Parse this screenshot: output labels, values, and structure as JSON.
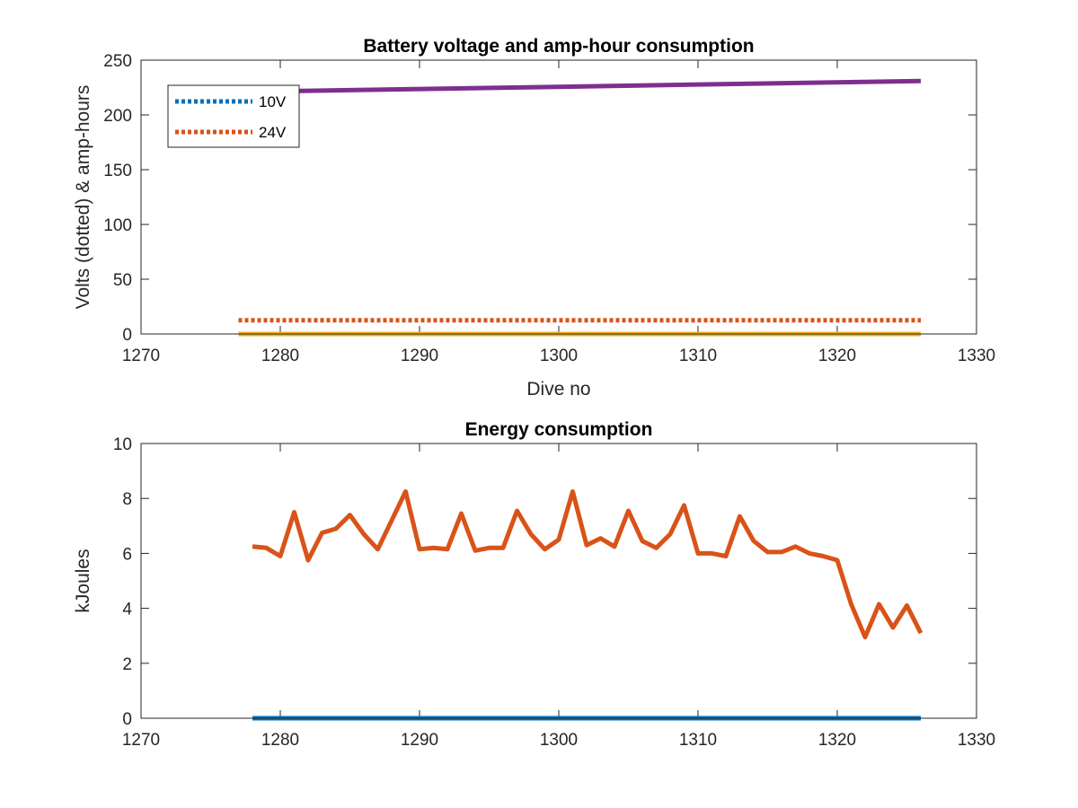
{
  "colors": {
    "blue": "#0072BD",
    "orange": "#D95319",
    "yellow": "#EDB120",
    "purple": "#7E2F8E",
    "axis": "#262626"
  },
  "chart_data": [
    {
      "type": "line",
      "title": "Battery voltage and amp-hour consumption",
      "xlabel": "Dive no",
      "ylabel": "Volts (dotted) & amp-hours",
      "xlim": [
        1270,
        1330
      ],
      "ylim": [
        0,
        250
      ],
      "xticks": [
        1270,
        1280,
        1290,
        1300,
        1310,
        1320,
        1330
      ],
      "yticks": [
        0,
        50,
        100,
        150,
        200,
        250
      ],
      "legend": {
        "placement": "top-left",
        "entries": [
          "10V",
          "24V"
        ]
      },
      "series": [
        {
          "name": "10V",
          "color": "blue",
          "style": "dotted",
          "x": [
            1277,
            1326
          ],
          "values": [
            0,
            0
          ]
        },
        {
          "name": "24V",
          "color": "orange",
          "style": "dotted",
          "x": [
            1277,
            1326
          ],
          "values": [
            12.5,
            12.5
          ]
        },
        {
          "color": "yellow",
          "style": "solid",
          "x": [
            1277,
            1326
          ],
          "values": [
            0,
            0
          ]
        },
        {
          "color": "purple",
          "style": "solid",
          "x": [
            1277,
            1326
          ],
          "values": [
            221,
            231
          ]
        }
      ]
    },
    {
      "type": "line",
      "title": "Energy consumption",
      "xlabel": "",
      "ylabel": "kJoules",
      "xlim": [
        1270,
        1330
      ],
      "ylim": [
        0,
        10
      ],
      "xticks": [
        1270,
        1280,
        1290,
        1300,
        1310,
        1320,
        1330
      ],
      "yticks": [
        0,
        2,
        4,
        6,
        8,
        10
      ],
      "series": [
        {
          "color": "blue",
          "style": "solid",
          "x": [
            1278,
            1326
          ],
          "values": [
            0,
            0
          ]
        },
        {
          "color": "orange",
          "style": "solid",
          "x": [
            1278,
            1279,
            1280,
            1281,
            1282,
            1283,
            1284,
            1285,
            1286,
            1287,
            1288,
            1289,
            1290,
            1291,
            1292,
            1293,
            1294,
            1295,
            1296,
            1297,
            1298,
            1299,
            1300,
            1301,
            1302,
            1303,
            1304,
            1305,
            1306,
            1307,
            1308,
            1309,
            1310,
            1311,
            1312,
            1313,
            1314,
            1315,
            1316,
            1317,
            1318,
            1319,
            1320,
            1321,
            1322,
            1323,
            1324,
            1325,
            1326
          ],
          "values": [
            6.25,
            6.2,
            5.9,
            7.5,
            5.75,
            6.75,
            6.9,
            7.4,
            6.7,
            6.15,
            7.2,
            8.25,
            6.15,
            6.2,
            6.15,
            7.45,
            6.1,
            6.2,
            6.2,
            7.55,
            6.7,
            6.15,
            6.5,
            8.25,
            6.3,
            6.55,
            6.25,
            7.55,
            6.45,
            6.2,
            6.7,
            7.75,
            6.0,
            6.0,
            5.9,
            7.35,
            6.45,
            6.05,
            6.05,
            6.25,
            6.0,
            5.9,
            5.75,
            4.15,
            2.95,
            4.15,
            3.3,
            4.1,
            3.1
          ]
        }
      ]
    }
  ]
}
